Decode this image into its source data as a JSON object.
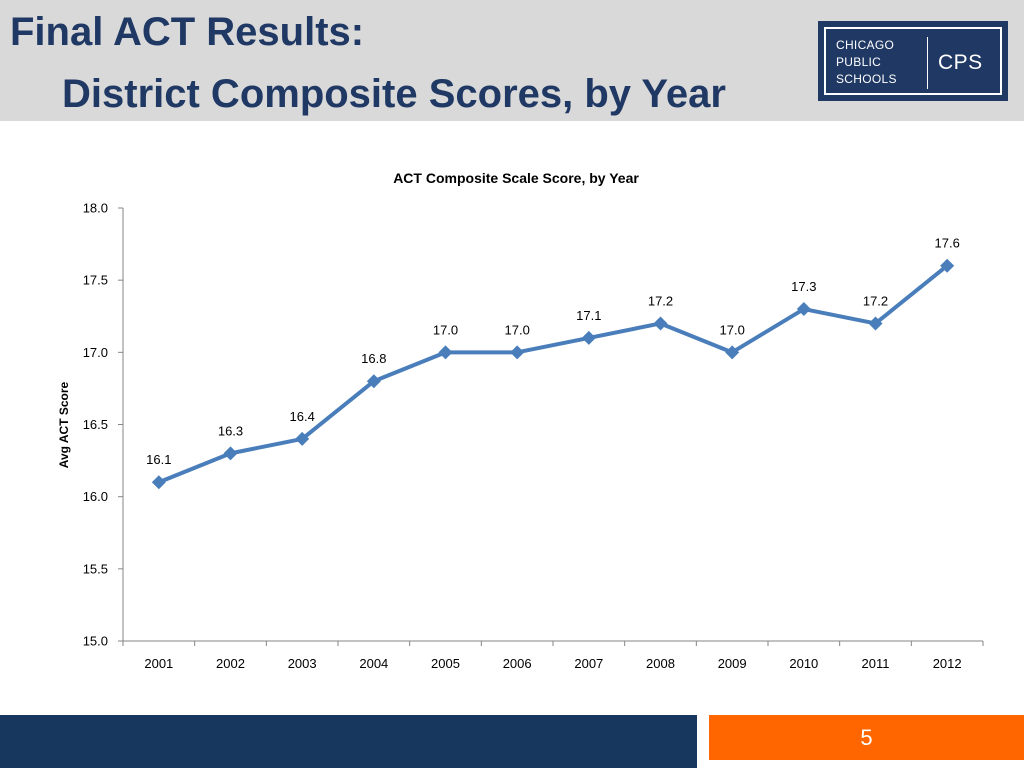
{
  "slide": {
    "title_line1": "Final ACT Results:",
    "title_line2": "District Composite Scores, by Year",
    "page_number": "5"
  },
  "logo": {
    "words": [
      "CHICAGO",
      "PUBLIC",
      "SCHOOLS"
    ],
    "abbreviation": "CPS"
  },
  "colors": {
    "title": "#1f3864",
    "header_bg": "#d9d9d9",
    "series_line": "#4a7ebb",
    "footer_navy": "#17375e",
    "footer_orange": "#ff6600"
  },
  "chart_data": {
    "type": "line",
    "title": "ACT Composite Scale Score, by Year",
    "xlabel": "",
    "ylabel": "Avg ACT Score",
    "categories": [
      "2001",
      "2002",
      "2003",
      "2004",
      "2005",
      "2006",
      "2007",
      "2008",
      "2009",
      "2010",
      "2011",
      "2012"
    ],
    "series": [
      {
        "values": [
          16.1,
          16.3,
          16.4,
          16.8,
          17.0,
          17.0,
          17.1,
          17.2,
          17.0,
          17.3,
          17.2,
          17.6
        ],
        "labels": [
          "16.1",
          "16.3",
          "16.4",
          "16.8",
          "17.0",
          "17.0",
          "17.1",
          "17.2",
          "17.0",
          "17.3",
          "17.2",
          "17.6"
        ],
        "marker": "diamond"
      }
    ],
    "ylim": [
      15.0,
      18.0
    ],
    "yticks": [
      "15.0",
      "15.5",
      "16.0",
      "16.5",
      "17.0",
      "17.5",
      "18.0"
    ],
    "grid": false,
    "legend": "none",
    "data_labels": "above"
  }
}
